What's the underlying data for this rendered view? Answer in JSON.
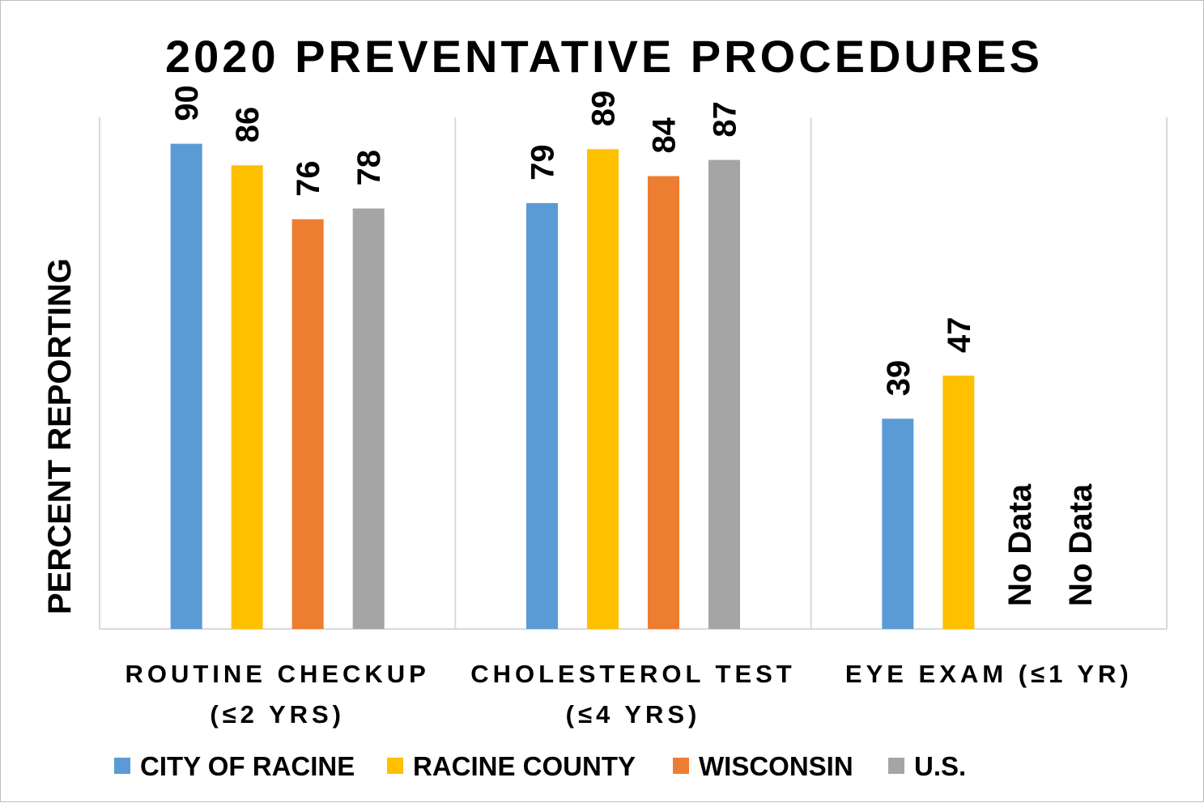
{
  "chart_data": {
    "type": "bar",
    "title": "2020 PREVENTATIVE PROCEDURES",
    "ylabel": "PERCENT REPORTING",
    "xlabel": "",
    "ylim": [
      0,
      100
    ],
    "grid": false,
    "legend_position": "bottom",
    "categories": [
      [
        "ROUTINE CHECKUP",
        "(≤2 YRS)"
      ],
      [
        "CHOLESTEROL TEST",
        "(≤4 YRS)"
      ],
      [
        "EYE EXAM (≤1 YR)"
      ]
    ],
    "series": [
      {
        "name": "CITY OF RACINE",
        "color": "#5b9bd5",
        "values": [
          90,
          79,
          39
        ]
      },
      {
        "name": "RACINE COUNTY",
        "color": "#ffc000",
        "values": [
          86,
          89,
          47
        ]
      },
      {
        "name": "WISCONSIN",
        "color": "#ed7d31",
        "values": [
          76,
          84,
          null
        ]
      },
      {
        "name": "U.S.",
        "color": "#a5a5a5",
        "values": [
          78,
          87,
          null
        ]
      }
    ],
    "missing_label": "No Data"
  }
}
